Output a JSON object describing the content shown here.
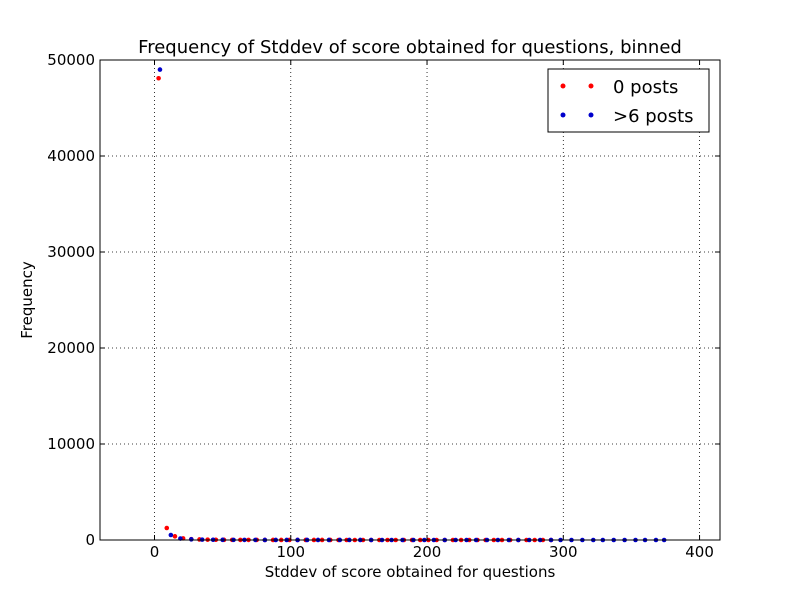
{
  "chart_data": {
    "type": "scatter",
    "title": "Frequency of Stddev of score obtained for questions, binned",
    "xlabel": "Stddev of score obtained for questions",
    "ylabel": "Frequency",
    "xlim": [
      -40,
      415
    ],
    "ylim": [
      0,
      50000
    ],
    "xticks": [
      0,
      100,
      200,
      300,
      400
    ],
    "yticks": [
      0,
      10000,
      20000,
      30000,
      40000,
      50000
    ],
    "xtick_labels": [
      "0",
      "100",
      "200",
      "300",
      "400"
    ],
    "ytick_labels": [
      "0",
      "10000",
      "20000",
      "30000",
      "40000",
      "50000"
    ],
    "grid": true,
    "legend_position": "top-right",
    "series": [
      {
        "name": "0 posts",
        "color": "#ff0000",
        "points": [
          [
            3,
            48100
          ],
          [
            9,
            1250
          ],
          [
            15,
            380
          ],
          [
            21,
            170
          ],
          [
            27,
            90
          ],
          [
            33,
            55
          ],
          [
            39,
            35
          ],
          [
            45,
            25
          ],
          [
            51,
            18
          ],
          [
            57,
            14
          ],
          [
            63,
            11
          ],
          [
            69,
            9
          ],
          [
            75,
            7
          ],
          [
            81,
            6
          ],
          [
            87,
            5
          ],
          [
            93,
            4
          ],
          [
            99,
            3
          ],
          [
            105,
            3
          ],
          [
            111,
            2
          ],
          [
            117,
            2
          ],
          [
            123,
            2
          ],
          [
            129,
            2
          ],
          [
            135,
            1
          ],
          [
            141,
            1
          ],
          [
            147,
            1
          ],
          [
            153,
            1
          ],
          [
            159,
            1
          ],
          [
            165,
            1
          ],
          [
            171,
            1
          ],
          [
            177,
            1
          ],
          [
            183,
            1
          ],
          [
            189,
            1
          ],
          [
            195,
            1
          ],
          [
            201,
            1
          ],
          [
            207,
            1
          ],
          [
            213,
            1
          ],
          [
            219,
            1
          ],
          [
            225,
            1
          ],
          [
            231,
            1
          ],
          [
            237,
            1
          ],
          [
            243,
            1
          ],
          [
            249,
            1
          ],
          [
            255,
            1
          ],
          [
            261,
            1
          ],
          [
            267,
            1
          ],
          [
            273,
            1
          ],
          [
            279,
            1
          ],
          [
            285,
            1
          ],
          [
            291,
            1
          ]
        ]
      },
      {
        "name": ">6 posts",
        "color": "#0000cc",
        "points": [
          [
            4,
            49000
          ],
          [
            12,
            520
          ],
          [
            19,
            150
          ],
          [
            27,
            70
          ],
          [
            35,
            40
          ],
          [
            43,
            25
          ],
          [
            50,
            18
          ],
          [
            58,
            13
          ],
          [
            66,
            10
          ],
          [
            74,
            8
          ],
          [
            81,
            6
          ],
          [
            89,
            5
          ],
          [
            97,
            4
          ],
          [
            105,
            4
          ],
          [
            112,
            3
          ],
          [
            120,
            3
          ],
          [
            128,
            2
          ],
          [
            136,
            2
          ],
          [
            143,
            2
          ],
          [
            151,
            2
          ],
          [
            159,
            1
          ],
          [
            167,
            1
          ],
          [
            174,
            1
          ],
          [
            182,
            1
          ],
          [
            190,
            1
          ],
          [
            198,
            1
          ],
          [
            205,
            1
          ],
          [
            213,
            1
          ],
          [
            221,
            1
          ],
          [
            229,
            1
          ],
          [
            236,
            1
          ],
          [
            244,
            1
          ],
          [
            252,
            1
          ],
          [
            260,
            1
          ],
          [
            267,
            1
          ],
          [
            275,
            1
          ],
          [
            283,
            1
          ],
          [
            291,
            1
          ],
          [
            298,
            1
          ],
          [
            306,
            1
          ],
          [
            314,
            1
          ],
          [
            322,
            1
          ],
          [
            329,
            1
          ],
          [
            337,
            1
          ],
          [
            345,
            1
          ],
          [
            353,
            1
          ],
          [
            360,
            1
          ],
          [
            368,
            1
          ],
          [
            374,
            1
          ]
        ]
      }
    ]
  }
}
